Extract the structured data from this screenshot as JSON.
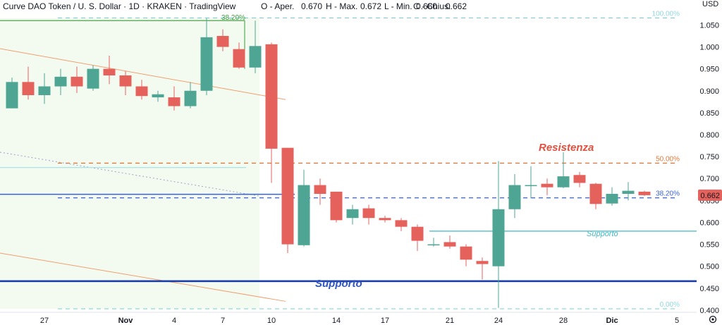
{
  "header": {
    "title": "Curve DAO Token / U. S. Dollar · 1D · KRAKEN · TradingView",
    "ohlc": [
      {
        "label": "O - Aper.",
        "value": "0.670"
      },
      {
        "label": "H - Max.",
        "value": "0.672"
      },
      {
        "label": "L - Min.",
        "value": "0.660"
      },
      {
        "label": "C - Chius.",
        "value": "0.662"
      }
    ]
  },
  "colors": {
    "up": "#4ea594",
    "down": "#e5615c",
    "resistance": "#e0513f",
    "support_blue": "#1c3fa8",
    "fib_dash": "#6fd0d6",
    "fib_orange": "#e07a3a",
    "support_cyan": "#3fb8c6",
    "channel": "#f0a070",
    "price_tag": "#e5615c"
  },
  "chart_data": {
    "type": "candlestick",
    "currency_label": "USD",
    "y_ticks": [
      "1.050",
      "1.000",
      "0.950",
      "0.900",
      "0.850",
      "0.800",
      "0.750",
      "0.700",
      "0.650",
      "0.600",
      "0.550",
      "0.500",
      "0.450",
      "0.400"
    ],
    "ylim": [
      0.395,
      1.078
    ],
    "x_ticks": [
      {
        "label": "27",
        "date": "2022-10-27"
      },
      {
        "label": "Nov",
        "date": "2022-11-01"
      },
      {
        "label": "4",
        "date": "2022-11-04"
      },
      {
        "label": "7",
        "date": "2022-11-07"
      },
      {
        "label": "10",
        "date": "2022-11-10"
      },
      {
        "label": "14",
        "date": "2022-11-14"
      },
      {
        "label": "17",
        "date": "2022-11-17"
      },
      {
        "label": "21",
        "date": "2022-11-21"
      },
      {
        "label": "24",
        "date": "2022-11-24"
      },
      {
        "label": "28",
        "date": "2022-11-28"
      },
      {
        "label": "Dic",
        "date": "2022-12-01"
      },
      {
        "label": "5",
        "date": "2022-12-05"
      }
    ],
    "candles": [
      {
        "date": "2022-10-25",
        "o": 0.86,
        "h": 0.93,
        "l": 0.86,
        "c": 0.92
      },
      {
        "date": "2022-10-26",
        "o": 0.92,
        "h": 0.955,
        "l": 0.88,
        "c": 0.89
      },
      {
        "date": "2022-10-27",
        "o": 0.89,
        "h": 0.94,
        "l": 0.87,
        "c": 0.91
      },
      {
        "date": "2022-10-28",
        "o": 0.91,
        "h": 0.95,
        "l": 0.89,
        "c": 0.932
      },
      {
        "date": "2022-10-29",
        "o": 0.932,
        "h": 0.955,
        "l": 0.895,
        "c": 0.91
      },
      {
        "date": "2022-10-30",
        "o": 0.905,
        "h": 0.958,
        "l": 0.9,
        "c": 0.95
      },
      {
        "date": "2022-10-31",
        "o": 0.95,
        "h": 0.98,
        "l": 0.915,
        "c": 0.935
      },
      {
        "date": "2022-11-01",
        "o": 0.935,
        "h": 0.945,
        "l": 0.89,
        "c": 0.91
      },
      {
        "date": "2022-11-02",
        "o": 0.91,
        "h": 0.925,
        "l": 0.88,
        "c": 0.888
      },
      {
        "date": "2022-11-03",
        "o": 0.885,
        "h": 0.9,
        "l": 0.875,
        "c": 0.892
      },
      {
        "date": "2022-11-04",
        "o": 0.885,
        "h": 0.91,
        "l": 0.855,
        "c": 0.865
      },
      {
        "date": "2022-11-05",
        "o": 0.865,
        "h": 0.92,
        "l": 0.86,
        "c": 0.9
      },
      {
        "date": "2022-11-06",
        "o": 0.9,
        "h": 1.065,
        "l": 0.89,
        "c": 1.022
      },
      {
        "date": "2022-11-07",
        "o": 1.025,
        "h": 1.04,
        "l": 0.99,
        "c": 1.0
      },
      {
        "date": "2022-11-08",
        "o": 0.995,
        "h": 1.01,
        "l": 0.95,
        "c": 0.953
      },
      {
        "date": "2022-11-09",
        "o": 0.953,
        "h": 1.06,
        "l": 0.94,
        "c": 1.002
      },
      {
        "date": "2022-11-10",
        "o": 1.006,
        "h": 1.01,
        "l": 0.69,
        "c": 0.768
      },
      {
        "date": "2022-11-11",
        "o": 0.77,
        "h": 0.77,
        "l": 0.53,
        "c": 0.55
      },
      {
        "date": "2022-11-12",
        "o": 0.548,
        "h": 0.72,
        "l": 0.545,
        "c": 0.685
      },
      {
        "date": "2022-11-13",
        "o": 0.685,
        "h": 0.7,
        "l": 0.64,
        "c": 0.665
      },
      {
        "date": "2022-11-14",
        "o": 0.67,
        "h": 0.67,
        "l": 0.6,
        "c": 0.605
      },
      {
        "date": "2022-11-15",
        "o": 0.61,
        "h": 0.64,
        "l": 0.595,
        "c": 0.63
      },
      {
        "date": "2022-11-16",
        "o": 0.632,
        "h": 0.64,
        "l": 0.595,
        "c": 0.61
      },
      {
        "date": "2022-11-17",
        "o": 0.61,
        "h": 0.615,
        "l": 0.6,
        "c": 0.605
      },
      {
        "date": "2022-11-18",
        "o": 0.605,
        "h": 0.61,
        "l": 0.58,
        "c": 0.59
      },
      {
        "date": "2022-11-19",
        "o": 0.59,
        "h": 0.595,
        "l": 0.535,
        "c": 0.558
      },
      {
        "date": "2022-11-20",
        "o": 0.55,
        "h": 0.565,
        "l": 0.545,
        "c": 0.55
      },
      {
        "date": "2022-11-21",
        "o": 0.555,
        "h": 0.57,
        "l": 0.54,
        "c": 0.545
      },
      {
        "date": "2022-11-22",
        "o": 0.545,
        "h": 0.55,
        "l": 0.5,
        "c": 0.515
      },
      {
        "date": "2022-11-23",
        "o": 0.512,
        "h": 0.52,
        "l": 0.47,
        "c": 0.505
      },
      {
        "date": "2022-11-24",
        "o": 0.5,
        "h": 0.74,
        "l": 0.405,
        "c": 0.63
      },
      {
        "date": "2022-11-25",
        "o": 0.63,
        "h": 0.71,
        "l": 0.61,
        "c": 0.685
      },
      {
        "date": "2022-11-26",
        "o": 0.685,
        "h": 0.728,
        "l": 0.655,
        "c": 0.685
      },
      {
        "date": "2022-11-27",
        "o": 0.688,
        "h": 0.7,
        "l": 0.662,
        "c": 0.68
      },
      {
        "date": "2022-11-28",
        "o": 0.68,
        "h": 0.76,
        "l": 0.678,
        "c": 0.705
      },
      {
        "date": "2022-11-29",
        "o": 0.708,
        "h": 0.715,
        "l": 0.68,
        "c": 0.69
      },
      {
        "date": "2022-11-30",
        "o": 0.688,
        "h": 0.69,
        "l": 0.63,
        "c": 0.642
      },
      {
        "date": "2022-12-01",
        "o": 0.643,
        "h": 0.68,
        "l": 0.638,
        "c": 0.665
      },
      {
        "date": "2022-12-02",
        "o": 0.665,
        "h": 0.692,
        "l": 0.65,
        "c": 0.672
      },
      {
        "date": "2022-12-03",
        "o": 0.67,
        "h": 0.672,
        "l": 0.66,
        "c": 0.662
      }
    ],
    "current_price": "0.662",
    "fib_levels": [
      {
        "label": "100.00%",
        "price": 1.066
      },
      {
        "label": "50.00%",
        "price": 0.735
      },
      {
        "label": "38.20%",
        "price": 0.656
      },
      {
        "label": "0.00%",
        "price": 0.403
      }
    ],
    "annotations": {
      "resistance": "Resistenza",
      "support_blue": "Supporto",
      "support_cyan": "Supporto",
      "fib_top": "38.20%"
    },
    "support_blue_price": 0.466,
    "support_cyan_price": 0.58,
    "resistance_price": 0.735
  }
}
